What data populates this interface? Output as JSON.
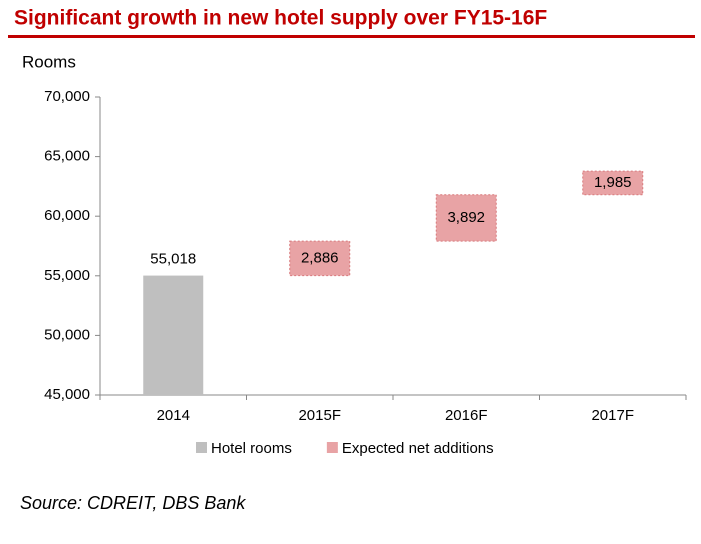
{
  "chart_data": {
    "type": "waterfall",
    "title": "Significant growth in new hotel supply over FY15-16F",
    "y_label": "Rooms",
    "source": "Source: CDREIT, DBS Bank",
    "categories": [
      "2014",
      "2015F",
      "2016F",
      "2017F"
    ],
    "series": [
      {
        "name": "Hotel rooms",
        "color": "#bfbfbf",
        "values": [
          55018,
          null,
          null,
          null
        ],
        "value_labels": [
          "55,018",
          null,
          null,
          null
        ]
      },
      {
        "name": "Expected net additions",
        "color": "#e8a3a5",
        "values": [
          null,
          2886,
          3892,
          1985
        ],
        "value_labels": [
          null,
          "2,886",
          "3,892",
          "1,985"
        ]
      }
    ],
    "ylim": [
      45000,
      70000
    ],
    "yticks": [
      {
        "value": 45000,
        "label": "45,000"
      },
      {
        "value": 50000,
        "label": "50,000"
      },
      {
        "value": 55000,
        "label": "55,000"
      },
      {
        "value": 60000,
        "label": "60,000"
      },
      {
        "value": 65000,
        "label": "65,000"
      },
      {
        "value": 70000,
        "label": "70,000"
      }
    ],
    "legend": "bottom"
  }
}
